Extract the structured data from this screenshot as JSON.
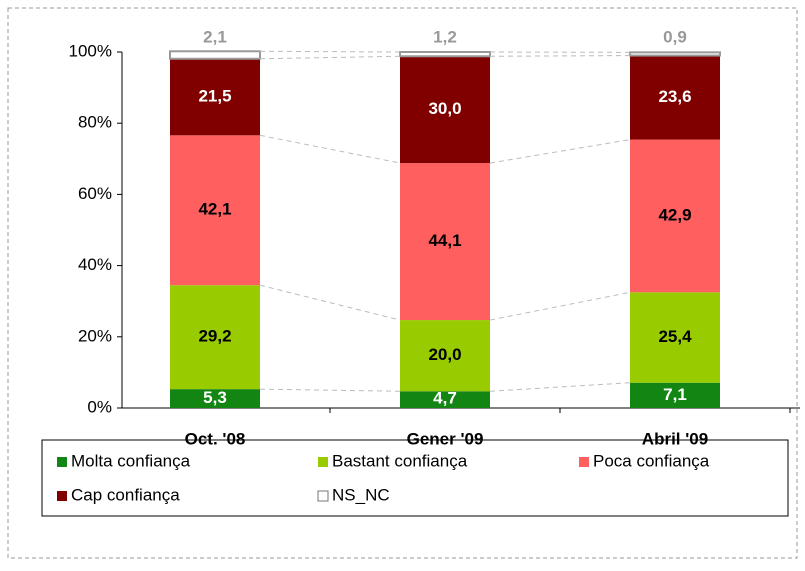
{
  "chart_data": {
    "type": "stacked_bar",
    "categories": [
      "Oct. '08",
      "Gener '09",
      "Abril '09"
    ],
    "series": [
      {
        "name": "Molta confiança",
        "color": "#138513",
        "values": [
          5.3,
          4.7,
          7.1
        ],
        "value_labels": [
          "5,3",
          "4,7",
          "7,1"
        ]
      },
      {
        "name": "Bastant confiança",
        "color": "#99cc00",
        "values": [
          29.2,
          20.0,
          25.4
        ],
        "value_labels": [
          "29,2",
          "20,0",
          "25,4"
        ]
      },
      {
        "name": "Poca confiança",
        "color": "#ff5f5f",
        "values": [
          42.1,
          44.1,
          42.9
        ],
        "value_labels": [
          "42,1",
          "44,1",
          "42,9"
        ]
      },
      {
        "name": "Cap confiança",
        "color": "#800000",
        "values": [
          21.5,
          30.0,
          23.6
        ],
        "value_labels": [
          "21,5",
          "30,0",
          "23,6"
        ]
      },
      {
        "name": "NS_NC",
        "color": "#ffffff",
        "values": [
          2.1,
          1.2,
          0.9
        ],
        "value_labels": [
          "2,1",
          "1,2",
          "0,9"
        ]
      }
    ],
    "ylim": [
      0,
      100
    ],
    "yticks": [
      {
        "value": 0,
        "label": "0%"
      },
      {
        "value": 20,
        "label": "20%"
      },
      {
        "value": 40,
        "label": "40%"
      },
      {
        "value": 60,
        "label": "60%"
      },
      {
        "value": 80,
        "label": "80%"
      },
      {
        "value": 100,
        "label": "100%"
      }
    ],
    "grid": false
  }
}
